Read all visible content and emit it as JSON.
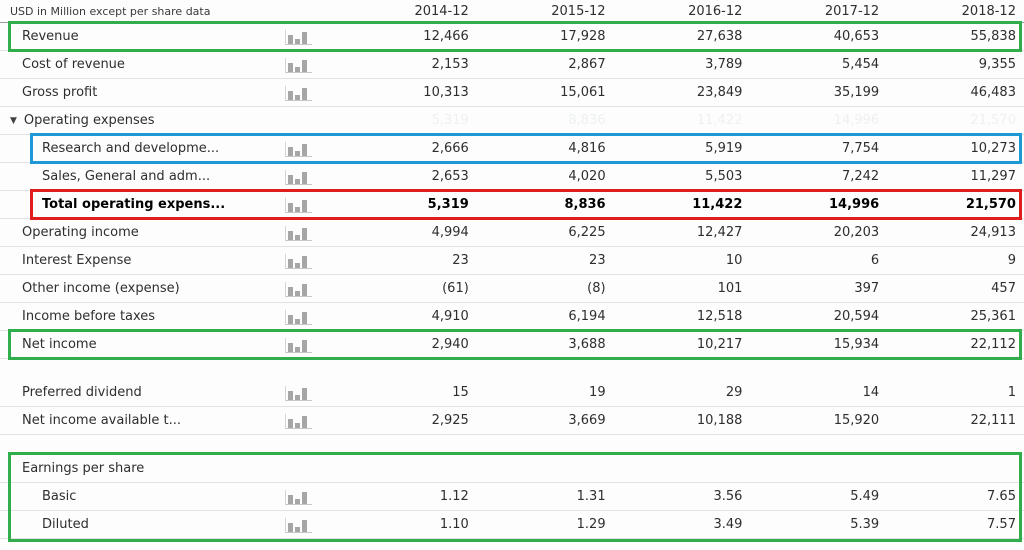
{
  "meta": {
    "unit_label": "USD in Million except per share data"
  },
  "columns": [
    "2014-12",
    "2015-12",
    "2016-12",
    "2017-12",
    "2018-12"
  ],
  "annotation_colors": {
    "green": "#2fae4b",
    "blue": "#1d9ad6",
    "red": "#df1d1d"
  },
  "rows": [
    {
      "name": "revenue",
      "label": "Revenue",
      "indent": 1,
      "icon": true,
      "highlight": "green",
      "values": [
        "12,466",
        "17,928",
        "27,638",
        "40,653",
        "55,838"
      ]
    },
    {
      "name": "cost-of-revenue",
      "label": "Cost of revenue",
      "indent": 1,
      "icon": true,
      "values": [
        "2,153",
        "2,867",
        "3,789",
        "5,454",
        "9,355"
      ]
    },
    {
      "name": "gross-profit",
      "label": "Gross profit",
      "indent": 1,
      "icon": true,
      "values": [
        "10,313",
        "15,061",
        "23,849",
        "35,199",
        "46,483"
      ]
    },
    {
      "name": "operating-expenses",
      "label": "Operating expenses",
      "group": true,
      "triangle": "▼",
      "ghost_values": [
        "5,319",
        "8,836",
        "11,422",
        "14,996",
        "21,570"
      ]
    },
    {
      "name": "research-and-development",
      "label": "Research and developme...",
      "indent": 2,
      "icon": true,
      "highlight": "blue",
      "values": [
        "2,666",
        "4,816",
        "5,919",
        "7,754",
        "10,273"
      ]
    },
    {
      "name": "sales-general-admin",
      "label": "Sales, General and adm...",
      "indent": 2,
      "icon": true,
      "values": [
        "2,653",
        "4,020",
        "5,503",
        "7,242",
        "11,297"
      ]
    },
    {
      "name": "total-operating-expenses",
      "label": "Total operating expens...",
      "indent": 2,
      "icon": true,
      "bold": true,
      "highlight": "red",
      "values": [
        "5,319",
        "8,836",
        "11,422",
        "14,996",
        "21,570"
      ]
    },
    {
      "name": "operating-income",
      "label": "Operating income",
      "indent": 1,
      "icon": true,
      "values": [
        "4,994",
        "6,225",
        "12,427",
        "20,203",
        "24,913"
      ]
    },
    {
      "name": "interest-expense",
      "label": "Interest Expense",
      "indent": 1,
      "icon": true,
      "values": [
        "23",
        "23",
        "10",
        "6",
        "9"
      ]
    },
    {
      "name": "other-income-expense",
      "label": "Other income (expense)",
      "indent": 1,
      "icon": true,
      "values": [
        "(61)",
        "(8)",
        "101",
        "397",
        "457"
      ]
    },
    {
      "name": "income-before-taxes",
      "label": "Income before taxes",
      "indent": 1,
      "icon": true,
      "values": [
        "4,910",
        "6,194",
        "12,518",
        "20,594",
        "25,361"
      ]
    },
    {
      "name": "net-income",
      "label": "Net income",
      "indent": 1,
      "icon": true,
      "highlight": "green",
      "values": [
        "2,940",
        "3,688",
        "10,217",
        "15,934",
        "22,112"
      ]
    },
    {
      "spacer": true
    },
    {
      "name": "preferred-dividend",
      "label": "Preferred dividend",
      "indent": 1,
      "icon": true,
      "values": [
        "15",
        "19",
        "29",
        "14",
        "1"
      ]
    },
    {
      "name": "net-income-available",
      "label": "Net income available t...",
      "indent": 1,
      "icon": true,
      "values": [
        "2,925",
        "3,669",
        "10,188",
        "15,920",
        "22,111"
      ]
    },
    {
      "spacer": true
    }
  ],
  "eps_section": {
    "box": "green",
    "rows": [
      {
        "name": "earnings-per-share",
        "label": "Earnings per share",
        "indent": 1
      },
      {
        "name": "basic-eps",
        "label": "Basic",
        "indent": 2,
        "icon": true,
        "values": [
          "1.12",
          "1.31",
          "3.56",
          "5.49",
          "7.65"
        ]
      },
      {
        "name": "diluted-eps",
        "label": "Diluted",
        "indent": 2,
        "icon": true,
        "values": [
          "1.10",
          "1.29",
          "3.49",
          "5.39",
          "7.57"
        ]
      }
    ]
  }
}
